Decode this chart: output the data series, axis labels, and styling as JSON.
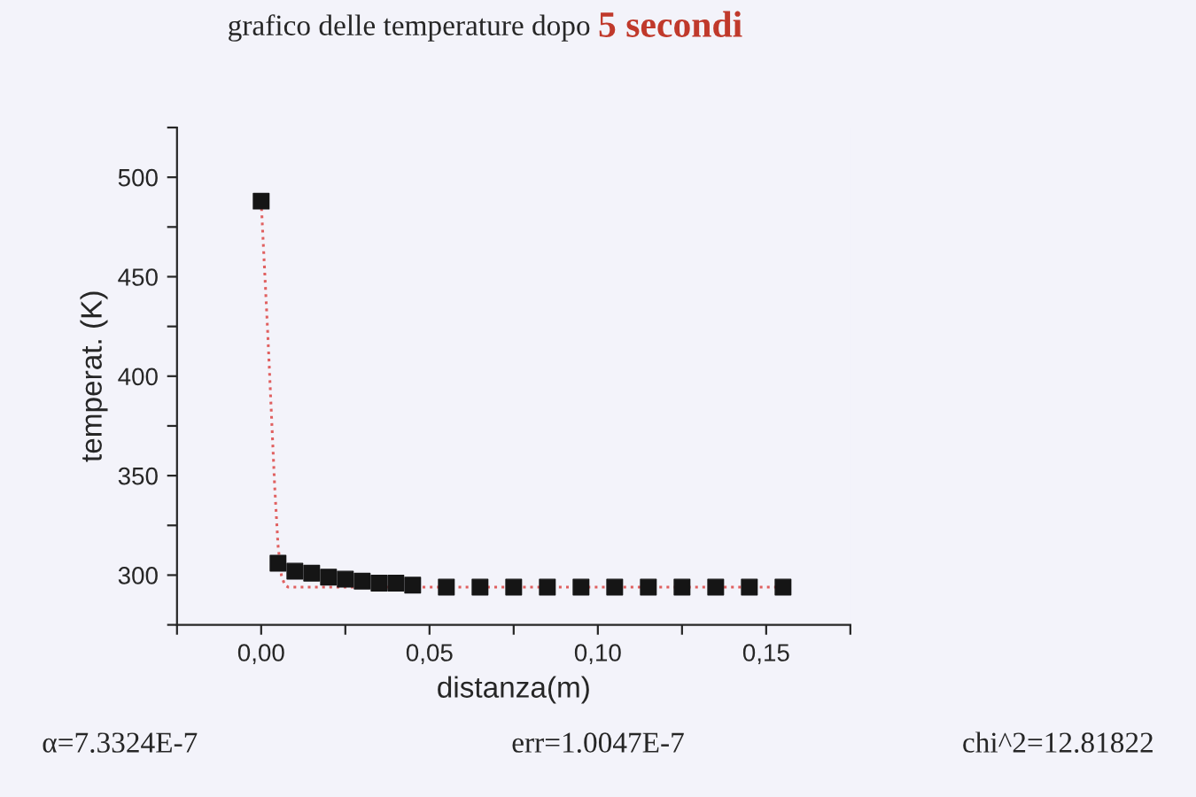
{
  "chart_data": {
    "type": "scatter",
    "title": "grafico delle temperature dopo",
    "subtitle": "5 secondi",
    "xlabel": "distanza(m)",
    "ylabel": "temperat. (K)",
    "series": [
      {
        "color": "#151515",
        "marker": "square",
        "x": [
          0,
          0.005,
          0.01,
          0.015,
          0.02,
          0.025,
          0.03,
          0.035,
          0.04,
          0.045,
          0.055,
          0.065,
          0.075,
          0.085,
          0.095,
          0.105,
          0.115,
          0.125,
          0.135,
          0.145,
          0.155
        ],
        "values": [
          488,
          306,
          302,
          301,
          299,
          298,
          297,
          296,
          296,
          295,
          294,
          294,
          294,
          294,
          294,
          294,
          294,
          294,
          294,
          294,
          294
        ]
      },
      {
        "type": "line",
        "color": "#e06060",
        "line_style": "dotted",
        "marker": "none",
        "x": [
          0,
          0.002,
          0.004,
          0.005,
          0.006,
          0.007,
          0.008,
          0.155
        ],
        "values": [
          488,
          420,
          345,
          315,
          300,
          295,
          294,
          294
        ]
      }
    ],
    "xlim": [
      -0.025,
      0.175
    ],
    "ylim": [
      275,
      525
    ],
    "xticks": [
      {
        "value": -0.025,
        "label": null
      },
      {
        "value": 0,
        "label": "0,00"
      },
      {
        "value": 0.025,
        "label": null
      },
      {
        "value": 0.05,
        "label": "0,05"
      },
      {
        "value": 0.075,
        "label": null
      },
      {
        "value": 0.1,
        "label": "0,10"
      },
      {
        "value": 0.125,
        "label": null
      },
      {
        "value": 0.15,
        "label": "0,15"
      },
      {
        "value": 0.175,
        "label": null
      }
    ],
    "yticks": [
      {
        "value": 275,
        "label": null
      },
      300,
      {
        "value": 325,
        "label": null
      },
      350,
      {
        "value": 375,
        "label": null
      },
      400,
      {
        "value": 425,
        "label": null
      },
      450,
      {
        "value": 475,
        "label": null
      },
      500,
      {
        "value": 525,
        "label": null
      }
    ],
    "grid": false,
    "legend": false,
    "annotations": [
      "α=7.3324E-7",
      "err=1.0047E-7",
      "chi^2=12.81822"
    ]
  }
}
